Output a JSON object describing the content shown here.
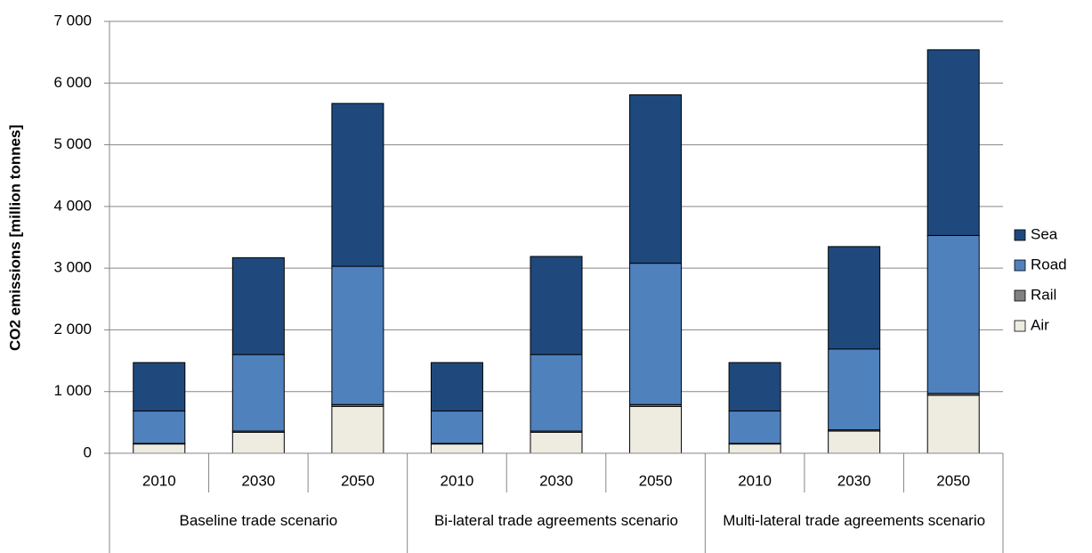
{
  "chart_data": {
    "type": "stacked_bar",
    "y_label": "CO2 emissions [million tonnes]",
    "categories": [
      "2010",
      "2030",
      "2050",
      "2010",
      "2030",
      "2050",
      "2010",
      "2030",
      "2050"
    ],
    "groups": [
      "Baseline trade scenario",
      "Bi-lateral trade agreements scenario",
      "Multi-lateral trade agreements scenario"
    ],
    "series": [
      {
        "name": "Air",
        "color": "#eeece1",
        "values": [
          150,
          340,
          760,
          150,
          340,
          760,
          150,
          360,
          940
        ]
      },
      {
        "name": "Rail",
        "color": "#808080",
        "values": [
          10,
          20,
          30,
          10,
          20,
          30,
          10,
          20,
          30
        ]
      },
      {
        "name": "Road",
        "color": "#4f81bd",
        "values": [
          525,
          1240,
          2240,
          525,
          1240,
          2290,
          525,
          1310,
          2560
        ]
      },
      {
        "name": "Sea",
        "color": "#1f497d",
        "values": [
          785,
          1570,
          2640,
          785,
          1590,
          2730,
          785,
          1660,
          3010
        ]
      }
    ],
    "ylim": [
      0,
      7000
    ],
    "yticks": [
      0,
      {
        "value": 1000,
        "label": "1 000"
      },
      {
        "value": 2000,
        "label": "2 000"
      },
      {
        "value": 3000,
        "label": "3 000"
      },
      {
        "value": 4000,
        "label": "4 000"
      },
      {
        "value": 5000,
        "label": "5 000"
      },
      {
        "value": 6000,
        "label": "6 000"
      },
      {
        "value": 7000,
        "label": "7 000"
      }
    ],
    "grid": true,
    "legend": "right"
  }
}
